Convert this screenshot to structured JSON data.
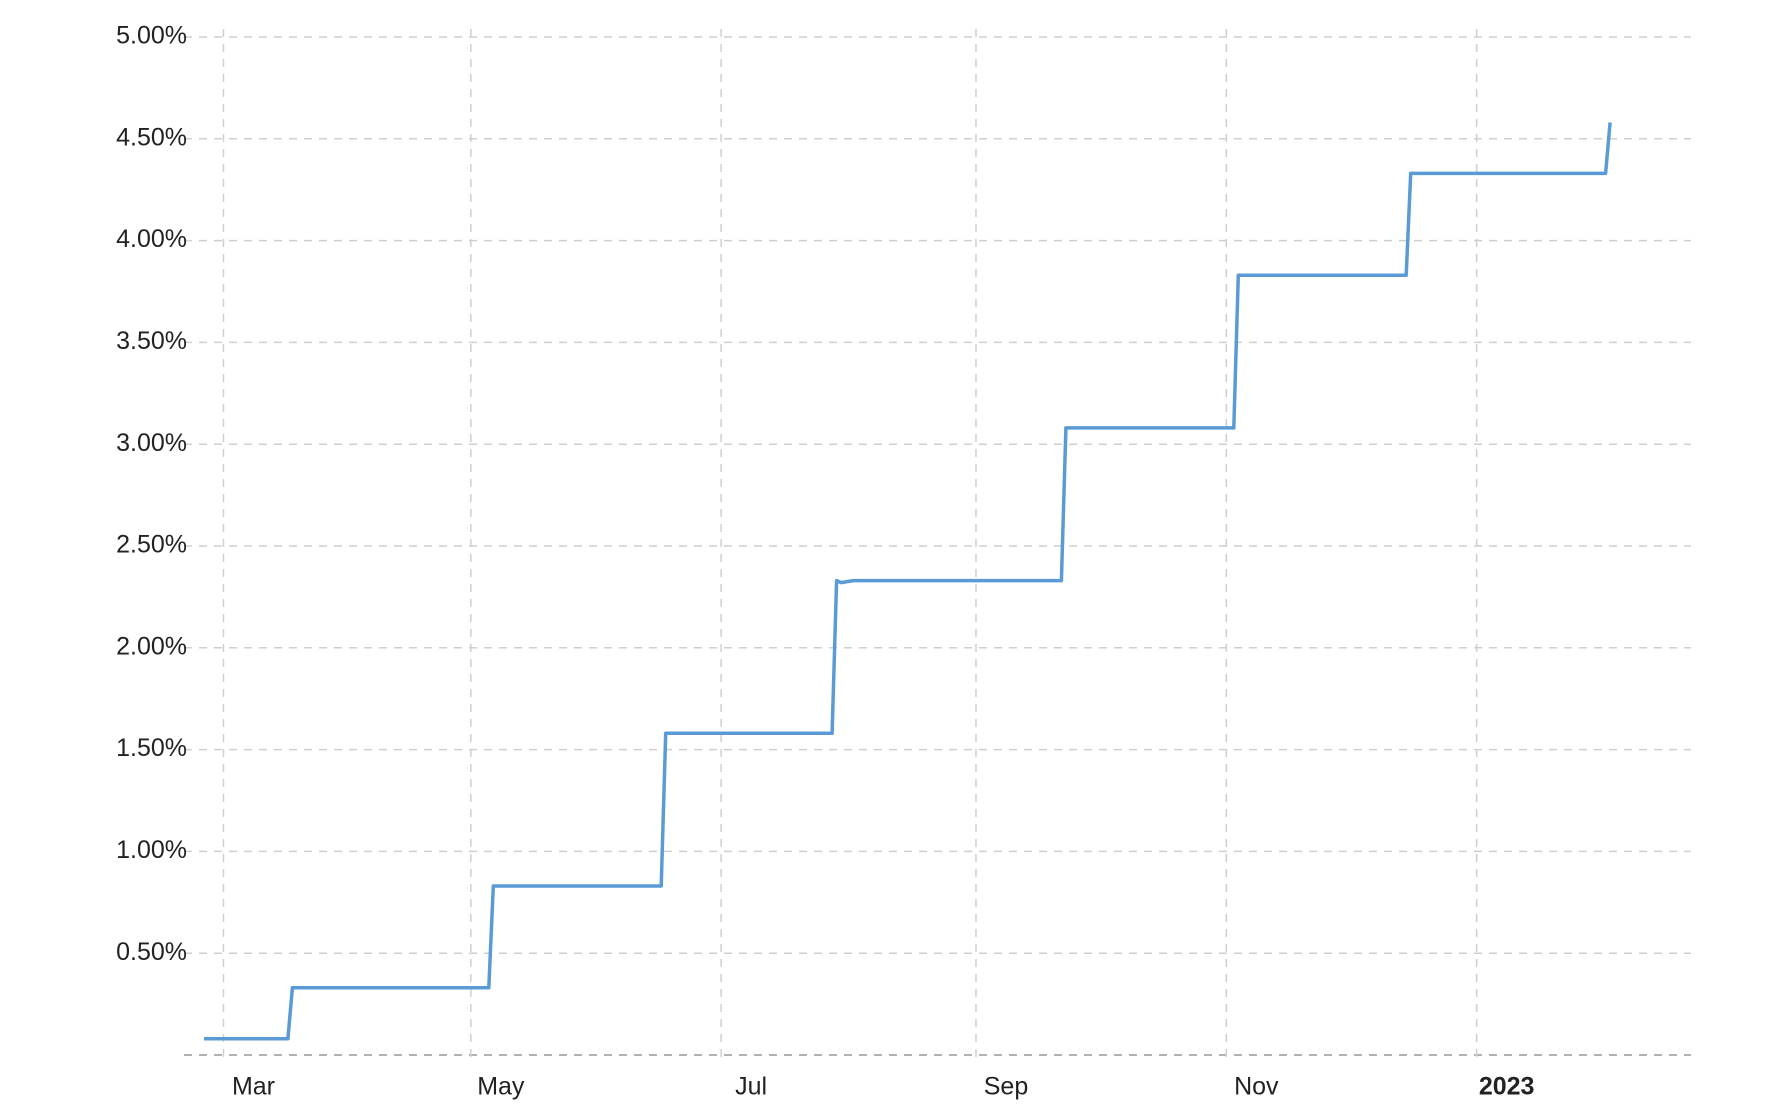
{
  "chart_data": {
    "type": "line",
    "x": [
      2022.151,
      2022.207,
      2022.21,
      2022.341,
      2022.344,
      2022.456,
      2022.459,
      2022.57,
      2022.573,
      2022.576,
      2022.584,
      2022.723,
      2022.726,
      2022.838,
      2022.841,
      2022.953,
      2022.956,
      2023.086,
      2023.089
    ],
    "series": [
      {
        "color": "#5b9bd5",
        "values": [
          0.08,
          0.08,
          0.33,
          0.33,
          0.83,
          0.83,
          1.58,
          1.58,
          2.33,
          2.32,
          2.33,
          2.33,
          3.08,
          3.08,
          3.83,
          3.83,
          4.33,
          4.33,
          4.58
        ]
      }
    ],
    "xlim": [
      2022.151,
      2023.143
    ],
    "xticks": [
      {
        "value": 2022.164,
        "label": "Mar"
      },
      {
        "value": 2022.329,
        "label": "May"
      },
      {
        "value": 2022.496,
        "label": "Jul"
      },
      {
        "value": 2022.666,
        "label": "Sep"
      },
      {
        "value": 2022.833,
        "label": "Nov"
      },
      2023
    ],
    "ylim": [
      0,
      5
    ],
    "yticks": [
      {
        "value": 0.5,
        "label": "0.50%"
      },
      {
        "value": 1,
        "label": "1.00%"
      },
      {
        "value": 1.5,
        "label": "1.50%"
      },
      {
        "value": 2,
        "label": "2.00%"
      },
      {
        "value": 2.5,
        "label": "2.50%"
      },
      {
        "value": 3,
        "label": "3.00%"
      },
      {
        "value": 3.5,
        "label": "3.50%"
      },
      {
        "value": 4,
        "label": "4.00%"
      },
      {
        "value": 4.5,
        "label": "4.50%"
      },
      {
        "value": 5,
        "label": "5.00%"
      }
    ],
    "grid": true
  }
}
